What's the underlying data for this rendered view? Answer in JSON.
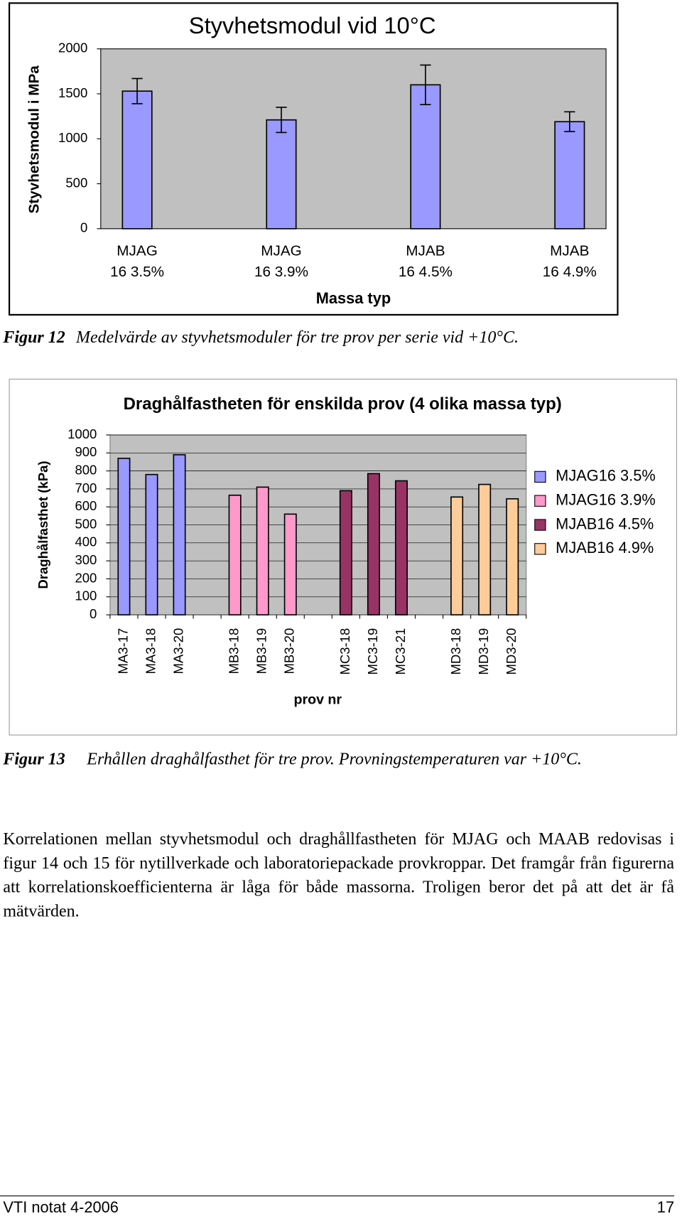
{
  "chart_data": [
    {
      "type": "bar",
      "title": "Styvhetsmodul vid 10°C",
      "y_label": "Styvhetsmodul i MPa",
      "x_label": "Massa typ",
      "categories": [
        "MJAG\n16 3.5%",
        "MJAG\n16 3.9%",
        "MJAB\n16 4.5%",
        "MJAB\n16 4.9%"
      ],
      "values": [
        1530,
        1210,
        1600,
        1190
      ],
      "errors": [
        140,
        140,
        220,
        110
      ],
      "color": "#9999ff",
      "ylim": [
        0,
        2000
      ],
      "yticks": [
        0,
        500,
        1000,
        1500,
        2000
      ],
      "grid": false
    },
    {
      "type": "bar",
      "title": "Draghålfastheten för enskilda prov (4 olika massa typ)",
      "y_label": "Draghålfasthet (kPa)",
      "x_label": "prov nr",
      "categories": [
        "MA3-17",
        "MA3-18",
        "MA3-20",
        null,
        "MB3-18",
        "MB3-19",
        "MB3-20",
        null,
        "MC3-18",
        "MC3-19",
        "MC3-21",
        null,
        "MD3-18",
        "MD3-19",
        "MD3-20"
      ],
      "series": [
        {
          "name": "MJAG16 3.5%",
          "color": "#9999ff",
          "values": [
            870,
            780,
            890,
            null,
            null,
            null,
            null,
            null,
            null,
            null,
            null,
            null,
            null,
            null,
            null
          ]
        },
        {
          "name": "MJAG16 3.9%",
          "color": "#ff99cc",
          "values": [
            null,
            null,
            null,
            null,
            665,
            710,
            560,
            null,
            null,
            null,
            null,
            null,
            null,
            null,
            null
          ]
        },
        {
          "name": "MJAB16 4.5%",
          "color": "#993366",
          "values": [
            null,
            null,
            null,
            null,
            null,
            null,
            null,
            null,
            690,
            785,
            745,
            null,
            null,
            null,
            null
          ]
        },
        {
          "name": "MJAB16 4.9%",
          "color": "#ffcc99",
          "values": [
            null,
            null,
            null,
            null,
            null,
            null,
            null,
            null,
            null,
            null,
            null,
            null,
            655,
            725,
            645
          ]
        }
      ],
      "ylim": [
        0,
        1000
      ],
      "yticks": [
        0,
        100,
        200,
        300,
        400,
        500,
        600,
        700,
        800,
        900,
        1000
      ],
      "grid": true,
      "legend": "right"
    }
  ],
  "captions": [
    {
      "label": "Figur 12",
      "text": "Medelvärde av styvhetsmoduler för tre prov per serie vid +10°C."
    },
    {
      "label": "Figur 13",
      "text": "Erhållen draghålfasthet för tre prov. Provningstemperaturen var +10°C."
    }
  ],
  "paragraph": "Korrelationen mellan styvhetsmodul och draghållfastheten för MJAG och MAAB redovisas i figur 14 och 15 för nytillverkade och laboratoriepackade provkroppar. Det framgår från figurerna att korrelationskoefficienterna är låga för både massorna. Troligen beror det på att det är få mätvärden.",
  "footer": {
    "left": "VTI notat 4-2006",
    "right": "17"
  }
}
